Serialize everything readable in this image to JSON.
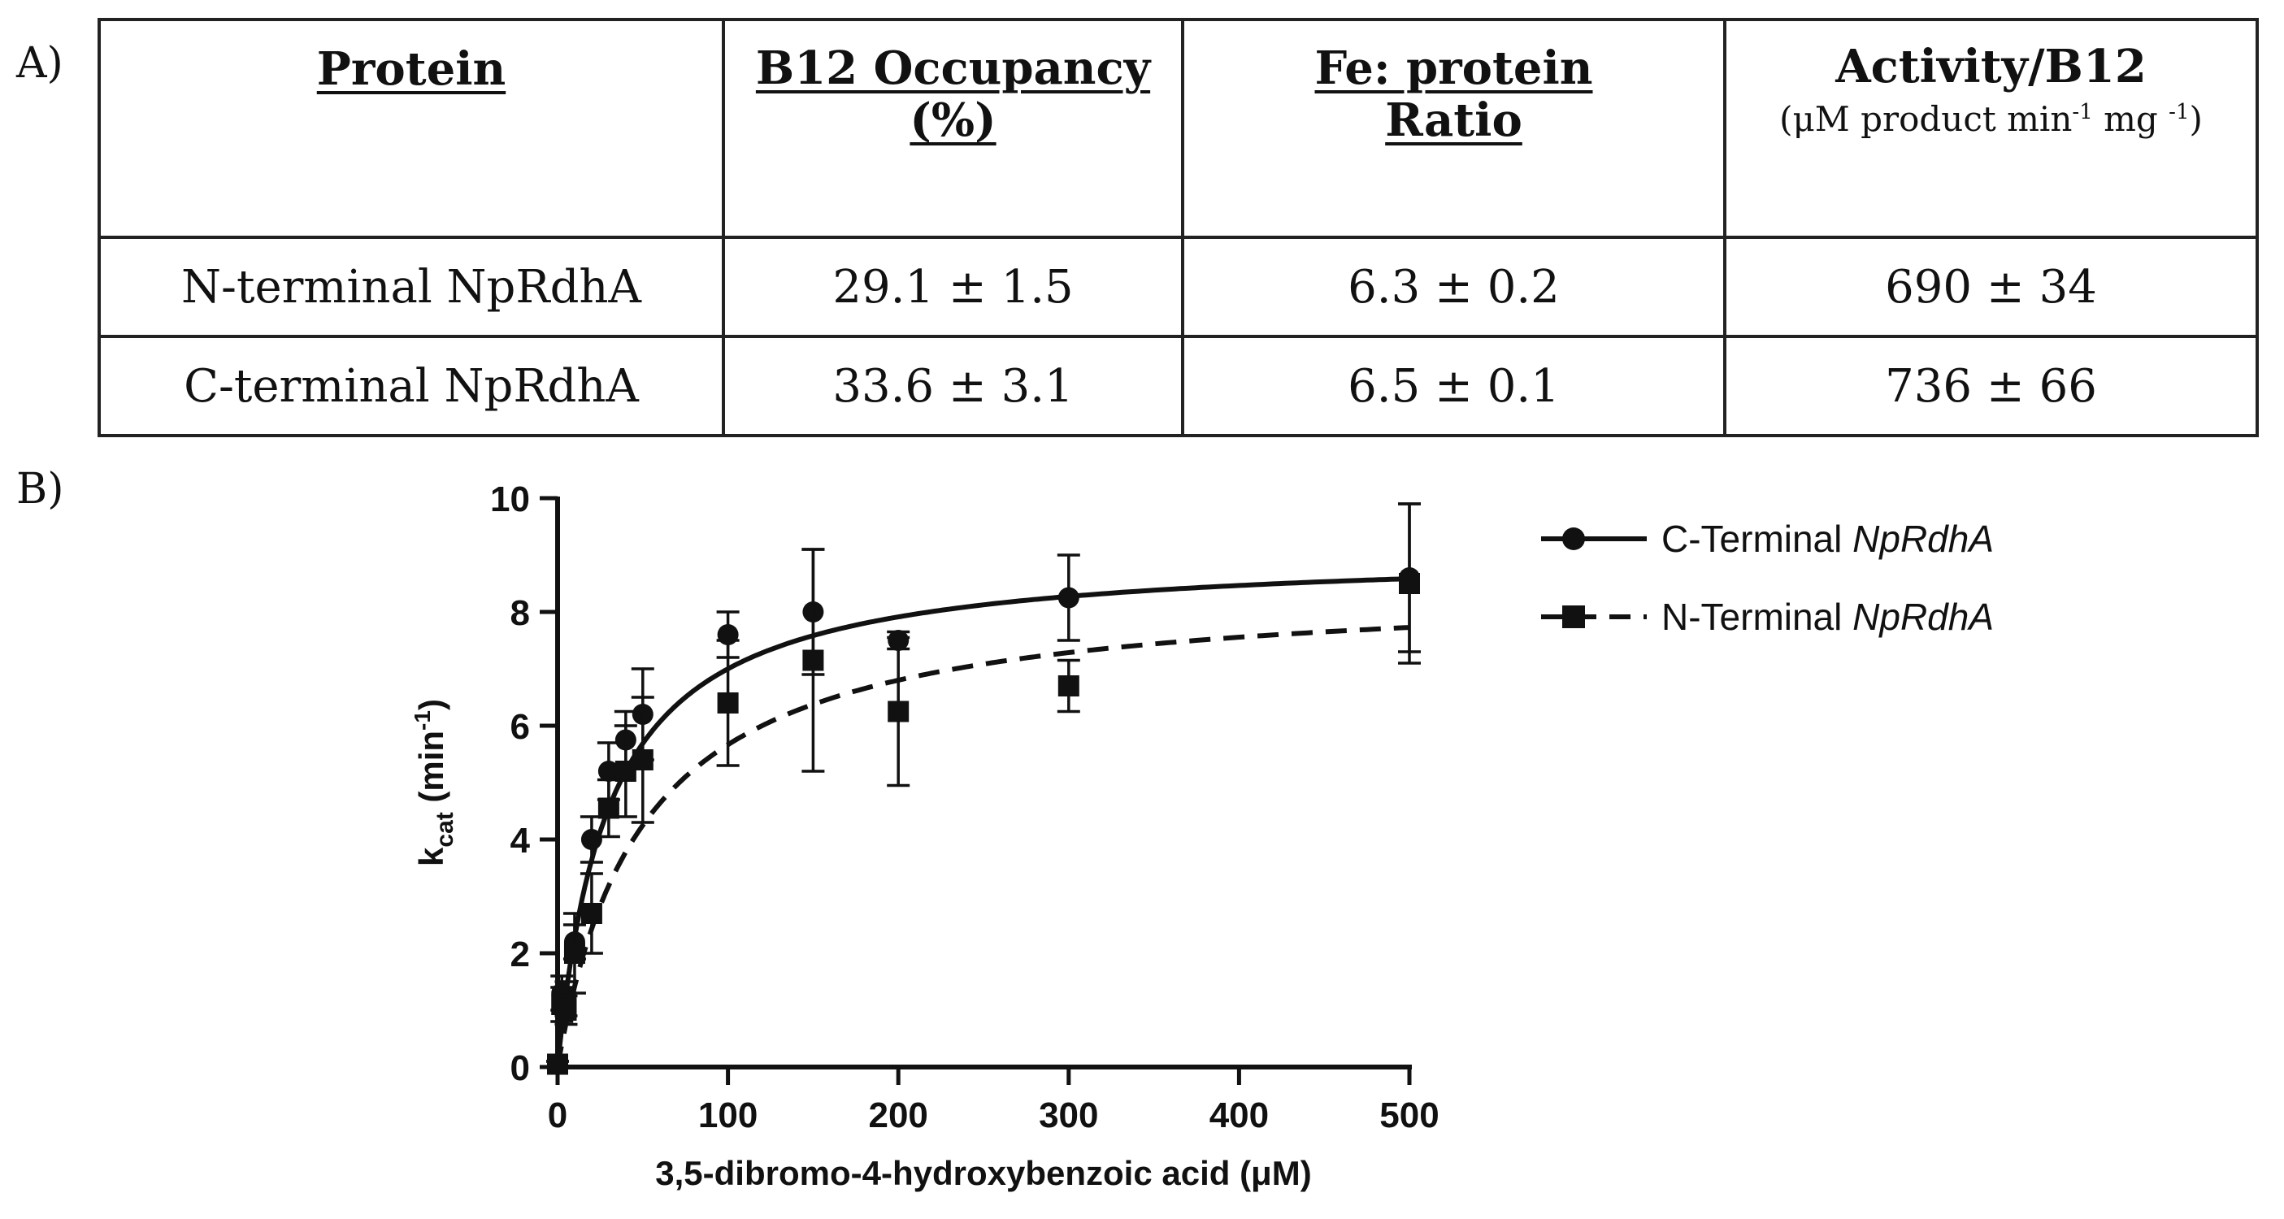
{
  "panel_a": {
    "label": "A)",
    "headers": {
      "protein": "Protein",
      "b12_line1": "B12 Occupancy",
      "b12_line2": "(%)",
      "fe_line1": "Fe: protein",
      "fe_line2": "Ratio",
      "activity": "Activity/B12",
      "activity_units_prefix": "(μM product min",
      "activity_units_exp1": "-1",
      "activity_units_mid": " mg ",
      "activity_units_exp2": "-1",
      "activity_units_suffix": ")"
    },
    "rows": [
      {
        "protein": "N-terminal NpRdhA",
        "b12": "29.1 ± 1.5",
        "fe": "6.3 ± 0.2",
        "activity": "690 ± 34"
      },
      {
        "protein": "C-terminal NpRdhA",
        "b12": "33.6 ± 3.1",
        "fe": "6.5 ± 0.1",
        "activity": "736 ± 66"
      }
    ]
  },
  "panel_b": {
    "label": "B)"
  },
  "chart_data": {
    "type": "scatter",
    "title": "",
    "xlabel": "3,5-dibromo-4-hydroxybenzoic acid (μM)",
    "ylabel_main": "k",
    "ylabel_sub": "cat",
    "ylabel_units_prefix": " (min",
    "ylabel_units_exp": "-1",
    "ylabel_units_suffix": ")",
    "xlim": [
      0,
      500
    ],
    "ylim": [
      0,
      10
    ],
    "xticks": [
      0,
      100,
      200,
      300,
      400,
      500
    ],
    "yticks": [
      0,
      2,
      4,
      6,
      8,
      10
    ],
    "grid": false,
    "legend_position": "top-right",
    "series": [
      {
        "name_prefix": "C-Terminal ",
        "name_italic": "NpRdhA",
        "marker": "circle",
        "line_style": "solid",
        "fit": {
          "model": "Michaelis-Menten",
          "vmax": 9.1,
          "km": 30
        },
        "x": [
          0,
          2.5,
          5,
          10,
          20,
          30,
          40,
          50,
          100,
          150,
          200,
          300,
          500
        ],
        "y": [
          0.05,
          1.3,
          1.2,
          2.2,
          4.0,
          5.2,
          5.75,
          6.2,
          7.6,
          8.0,
          7.5,
          8.25,
          8.6
        ],
        "err": [
          0.05,
          0.3,
          0.3,
          0.3,
          0.4,
          0.5,
          0.5,
          0.8,
          0.4,
          1.1,
          0.15,
          0.75,
          1.3
        ]
      },
      {
        "name_prefix": "N-Terminal ",
        "name_italic": "NpRdhA",
        "marker": "square",
        "line_style": "dashed",
        "fit": {
          "model": "Michaelis-Menten",
          "vmax": 8.5,
          "km": 50
        },
        "x": [
          0,
          2.5,
          5,
          10,
          20,
          30,
          40,
          50,
          100,
          150,
          200,
          300,
          500
        ],
        "y": [
          0.05,
          1.1,
          1.0,
          2.0,
          2.7,
          4.55,
          5.2,
          5.4,
          6.4,
          7.15,
          6.25,
          6.7,
          8.5
        ],
        "err": [
          0.05,
          0.3,
          0.25,
          0.7,
          0.7,
          0.5,
          0.8,
          1.1,
          1.1,
          1.95,
          1.3,
          0.45,
          1.4
        ]
      }
    ]
  }
}
